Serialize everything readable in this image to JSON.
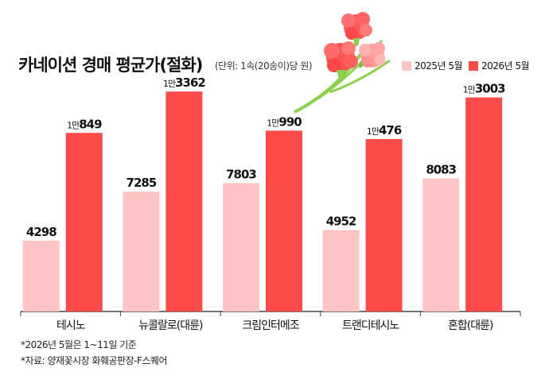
{
  "title": "카네이션 경매 평균가(절화)",
  "unit": "(단위: 1속(20송이)당 원)",
  "colors": {
    "y2025": "#ffc4c4",
    "y2026": "#ff4a4a",
    "axis": "#444444"
  },
  "legend": [
    {
      "label": "2025년 5월",
      "color": "#ffc4c4"
    },
    {
      "label": "2026년 5월",
      "color": "#ff4a4a"
    }
  ],
  "notes": [
    "*2026년 5월은 1~11일 기준",
    "*자료: 양재꽃시장 화훼공판장-F스퀘어"
  ],
  "chart_data": {
    "type": "bar",
    "title": "카네이션 경매 평균가(절화)",
    "ylabel": "(단위: 1속(20송이)당 원)",
    "ylim": [
      0,
      14000
    ],
    "grid": false,
    "legend_position": "top-right",
    "categories": [
      "테시노",
      "뉴콜랄로(대륜)",
      "크림인터메조",
      "트랜디테시노",
      "혼합(대륜)"
    ],
    "series": [
      {
        "name": "2025년 5월",
        "color": "#ffc4c4",
        "values": [
          4298,
          7285,
          7803,
          4952,
          8083
        ],
        "labels": [
          [
            "",
            "4298"
          ],
          [
            "",
            "7285"
          ],
          [
            "",
            "7803"
          ],
          [
            "",
            "4952"
          ],
          [
            "",
            "8083"
          ]
        ]
      },
      {
        "name": "2026년 5월",
        "color": "#ff4a4a",
        "values": [
          10849,
          13362,
          10990,
          10476,
          13003
        ],
        "labels": [
          [
            "1만",
            "849"
          ],
          [
            "1만",
            "3362"
          ],
          [
            "1만",
            "990"
          ],
          [
            "1만",
            "476"
          ],
          [
            "1만",
            "3003"
          ]
        ]
      }
    ]
  }
}
